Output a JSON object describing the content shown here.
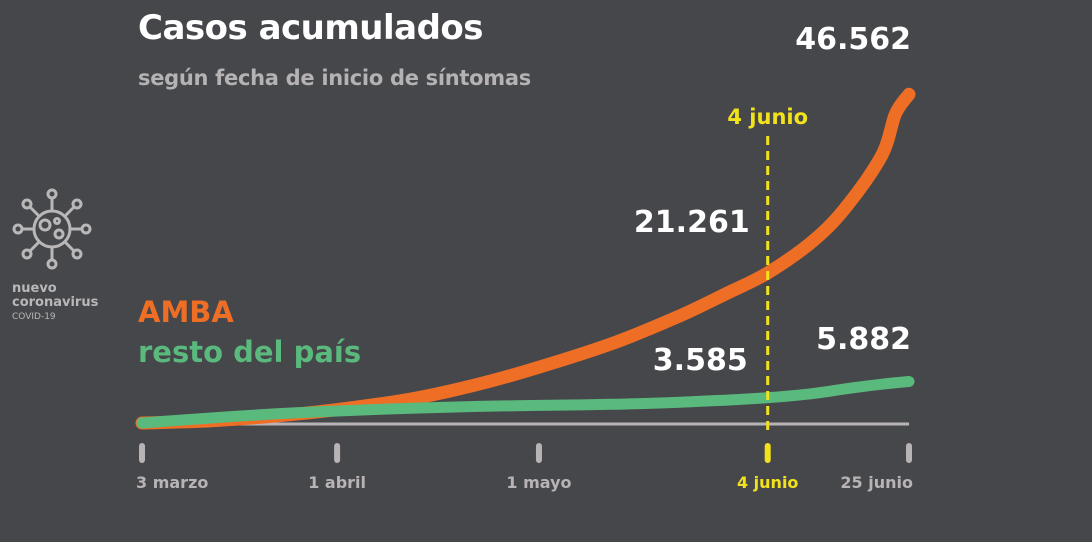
{
  "brand": {
    "line1": "nuevo",
    "line2": "coronavirus",
    "line3": "COVID-19",
    "icon": "coronavirus-icon"
  },
  "chart_data": {
    "type": "line",
    "title": "Casos acumulados",
    "subtitle": "según fecha de inicio de síntomas",
    "x_ticks": [
      "3 marzo",
      "1 abril",
      "1 mayo",
      "4 junio",
      "25 junio"
    ],
    "x_tick_days": [
      0,
      29,
      59,
      93,
      114
    ],
    "xlim": [
      0,
      114
    ],
    "ylim": [
      0,
      50000
    ],
    "marker": {
      "label": "4 junio",
      "day": 93,
      "color": "#f2e21c"
    },
    "series": [
      {
        "name": "AMBA",
        "color": "#ee6e25",
        "points": [
          [
            0,
            0
          ],
          [
            10,
            300
          ],
          [
            20,
            1000
          ],
          [
            29,
            1900
          ],
          [
            40,
            3400
          ],
          [
            50,
            5500
          ],
          [
            59,
            7900
          ],
          [
            70,
            11300
          ],
          [
            80,
            15200
          ],
          [
            87,
            18400
          ],
          [
            93,
            21261
          ],
          [
            100,
            26000
          ],
          [
            105,
            31000
          ],
          [
            110,
            38000
          ],
          [
            112,
            43800
          ],
          [
            114,
            46562
          ]
        ],
        "labels": [
          {
            "day": 93,
            "value": 21261,
            "text": "21.261"
          },
          {
            "day": 114,
            "value": 46562,
            "text": "46.562"
          }
        ]
      },
      {
        "name": "resto del país",
        "color": "#5ab97c",
        "points": [
          [
            0,
            0
          ],
          [
            10,
            700
          ],
          [
            20,
            1300
          ],
          [
            29,
            1700
          ],
          [
            40,
            2100
          ],
          [
            50,
            2350
          ],
          [
            59,
            2500
          ],
          [
            70,
            2650
          ],
          [
            80,
            2950
          ],
          [
            87,
            3250
          ],
          [
            93,
            3585
          ],
          [
            100,
            4200
          ],
          [
            105,
            4900
          ],
          [
            110,
            5500
          ],
          [
            114,
            5882
          ]
        ],
        "labels": [
          {
            "day": 93,
            "value": 3585,
            "text": "3.585"
          },
          {
            "day": 114,
            "value": 5882,
            "text": "5.882"
          }
        ]
      }
    ]
  }
}
